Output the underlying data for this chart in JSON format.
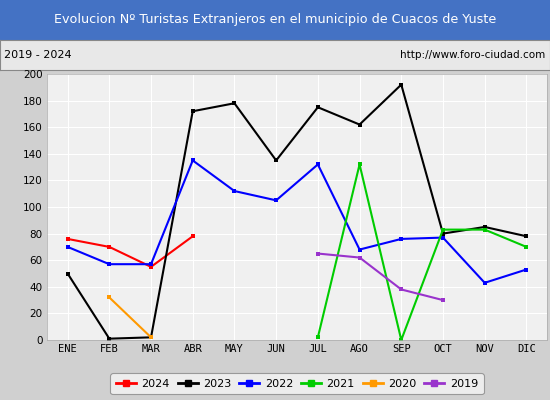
{
  "title": "Evolucion Nº Turistas Extranjeros en el municipio de Cuacos de Yuste",
  "subtitle_left": "2019 - 2024",
  "subtitle_right": "http://www.foro-ciudad.com",
  "title_bg_color": "#4472c4",
  "title_font_color": "#ffffff",
  "subtitle_bg_color": "#e8e8e8",
  "plot_bg_color": "#f0f0f0",
  "outer_bg_color": "#d0d0d0",
  "months": [
    "ENE",
    "FEB",
    "MAR",
    "ABR",
    "MAY",
    "JUN",
    "JUL",
    "AGO",
    "SEP",
    "OCT",
    "NOV",
    "DIC"
  ],
  "ylim": [
    0,
    200
  ],
  "yticks": [
    0,
    20,
    40,
    60,
    80,
    100,
    120,
    140,
    160,
    180,
    200
  ],
  "series": {
    "2024": {
      "color": "#ff0000",
      "data": [
        76,
        70,
        55,
        78,
        null,
        null,
        null,
        null,
        null,
        null,
        null,
        null
      ]
    },
    "2023": {
      "color": "#000000",
      "data": [
        50,
        1,
        2,
        172,
        178,
        135,
        175,
        162,
        192,
        80,
        85,
        78
      ]
    },
    "2022": {
      "color": "#0000ff",
      "data": [
        70,
        57,
        57,
        135,
        112,
        105,
        132,
        68,
        76,
        77,
        43,
        53
      ]
    },
    "2021": {
      "color": "#00cc00",
      "data": [
        null,
        null,
        null,
        null,
        null,
        null,
        2,
        132,
        0,
        83,
        83,
        70
      ]
    },
    "2020": {
      "color": "#ff9900",
      "data": [
        null,
        32,
        2,
        null,
        null,
        null,
        null,
        null,
        null,
        null,
        null,
        null
      ]
    },
    "2019": {
      "color": "#9933cc",
      "data": [
        null,
        null,
        null,
        null,
        null,
        null,
        65,
        62,
        38,
        30,
        null,
        null
      ]
    }
  },
  "legend_order": [
    "2024",
    "2023",
    "2022",
    "2021",
    "2020",
    "2019"
  ]
}
